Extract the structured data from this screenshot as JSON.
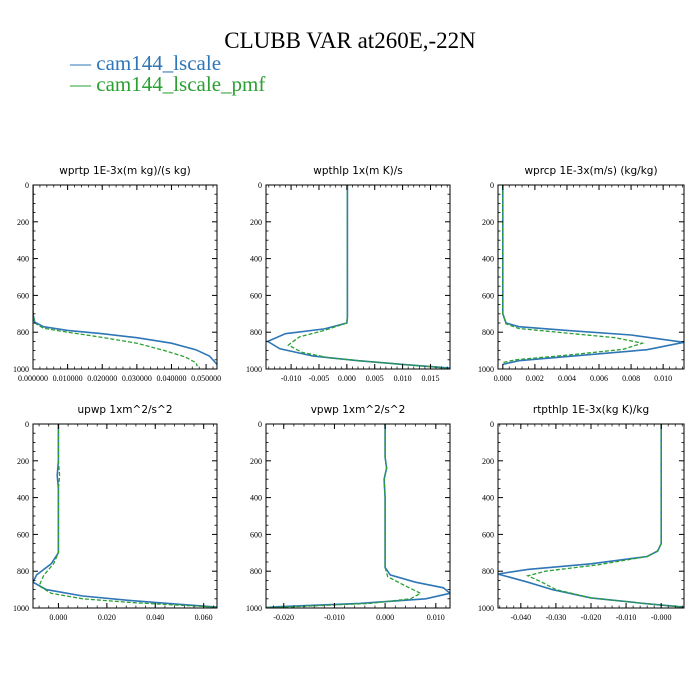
{
  "title": "CLUBB VAR at260E,-22N",
  "colors": {
    "series1": "#2e76b6",
    "series2": "#2aa032",
    "axes": "#000000"
  },
  "legend": [
    {
      "label": "cam144_lscale",
      "color": "#2e76b6"
    },
    {
      "label": "cam144_lscale_pmf",
      "color": "#2aa032"
    }
  ],
  "chart_data": [
    {
      "type": "line",
      "title": "wprtp  1E-3x(m kg)/(s kg)",
      "xlim": [
        0.0,
        0.05315
      ],
      "ylim": [
        0,
        1000
      ],
      "y_inverted": true,
      "xticks": [
        0.0,
        0.01,
        0.02,
        0.03,
        0.04,
        0.05
      ],
      "xticklabels": [
        "0.000000",
        "0.010000",
        "0.020000",
        "0.030000",
        "0.040000",
        "0.050000"
      ],
      "yticks": [
        0,
        200,
        400,
        600,
        800,
        1000
      ],
      "yticklabels": [
        "0",
        "200",
        "400",
        "600",
        "800",
        "1000"
      ],
      "series": [
        {
          "name": "cam144_lscale",
          "x": [
            0.0,
            0.0,
            0.0,
            0.0005,
            0.003,
            0.01,
            0.02,
            0.03,
            0.04,
            0.047,
            0.051,
            0.05315
          ],
          "y": [
            0,
            400,
            700,
            745,
            770,
            790,
            808,
            830,
            860,
            895,
            930,
            975
          ]
        },
        {
          "name": "cam144_lscale_pmf",
          "x": [
            0.0,
            0.0,
            0.0,
            0.0005,
            0.003,
            0.01,
            0.02,
            0.03,
            0.038,
            0.044,
            0.047,
            0.0475
          ],
          "y": [
            0,
            400,
            700,
            750,
            778,
            800,
            828,
            860,
            900,
            935,
            965,
            985
          ]
        }
      ]
    },
    {
      "type": "line",
      "title": "wpthlp  1x(m K)/s",
      "xlim": [
        -0.0145,
        0.0185
      ],
      "ylim": [
        0,
        1000
      ],
      "y_inverted": true,
      "xticks": [
        -0.01,
        -0.005,
        0.0,
        0.005,
        0.01,
        0.015
      ],
      "xticklabels": [
        "-0.010",
        "-0.005",
        "0.000",
        "0.005",
        "0.010",
        "0.015"
      ],
      "yticks": [
        0,
        200,
        400,
        600,
        800,
        1000
      ],
      "yticklabels": [
        "0",
        "200",
        "400",
        "600",
        "800",
        "1000"
      ],
      "series": [
        {
          "name": "cam144_lscale",
          "x": [
            0.0001,
            0.0001,
            0.0001,
            0.0001,
            0.0,
            -0.004,
            -0.011,
            -0.0142,
            -0.012,
            -0.006,
            0.002,
            0.01,
            0.0185
          ],
          "y": [
            0,
            300,
            600,
            720,
            750,
            782,
            808,
            850,
            890,
            930,
            955,
            975,
            995
          ]
        },
        {
          "name": "cam144_lscale_pmf",
          "x": [
            0.0001,
            0.0001,
            0.0001,
            0.0001,
            0.0,
            -0.004,
            -0.0085,
            -0.0105,
            -0.008,
            -0.003,
            0.004,
            0.012,
            0.0178
          ],
          "y": [
            0,
            300,
            600,
            720,
            750,
            790,
            825,
            870,
            910,
            940,
            960,
            980,
            995
          ]
        }
      ]
    },
    {
      "type": "line",
      "title": "wprcp  1E-3x(m/s) (kg/kg)",
      "xlim": [
        -0.0003,
        0.0113
      ],
      "ylim": [
        0,
        1000
      ],
      "y_inverted": true,
      "xticks": [
        0.0,
        0.002,
        0.004,
        0.006,
        0.008,
        0.01
      ],
      "xticklabels": [
        "0.000",
        "0.002",
        "0.004",
        "0.006",
        "0.008",
        "0.010"
      ],
      "yticks": [
        0,
        200,
        400,
        600,
        800,
        1000
      ],
      "yticklabels": [
        "0",
        "200",
        "400",
        "600",
        "800",
        "1000"
      ],
      "series": [
        {
          "name": "cam144_lscale",
          "x": [
            0.0,
            0.0,
            0.0,
            0.0002,
            0.001,
            0.004,
            0.008,
            0.0113,
            0.009,
            0.005,
            0.001,
            0.0
          ],
          "y": [
            0,
            500,
            700,
            750,
            770,
            790,
            815,
            855,
            895,
            925,
            955,
            975
          ]
        },
        {
          "name": "cam144_lscale_pmf",
          "x": [
            0.0,
            0.0,
            0.0,
            0.0002,
            0.001,
            0.004,
            0.007,
            0.0087,
            0.0075,
            0.004,
            0.0008,
            0.0
          ],
          "y": [
            0,
            500,
            700,
            755,
            780,
            805,
            830,
            860,
            893,
            925,
            950,
            965
          ]
        }
      ]
    },
    {
      "type": "line",
      "title": "upwp  1xm^2/s^2",
      "xlim": [
        -0.0105,
        0.0655
      ],
      "ylim": [
        0,
        1000
      ],
      "y_inverted": true,
      "xticks": [
        0.0,
        0.02,
        0.04,
        0.06
      ],
      "xticklabels": [
        "0.000",
        "0.020",
        "0.040",
        "0.060"
      ],
      "yticks": [
        0,
        200,
        400,
        600,
        800,
        1000
      ],
      "yticklabels": [
        "0",
        "200",
        "400",
        "600",
        "800",
        "1000"
      ],
      "series": [
        {
          "name": "cam144_lscale",
          "x": [
            0.0,
            0.0,
            -0.0005,
            0.0,
            0.0,
            -0.003,
            -0.009,
            -0.0105,
            -0.005,
            0.01,
            0.03,
            0.05,
            0.0655
          ],
          "y": [
            0,
            200,
            280,
            350,
            700,
            760,
            820,
            860,
            900,
            935,
            960,
            980,
            995
          ]
        },
        {
          "name": "cam144_lscale_pmf",
          "x": [
            0.0,
            0.0,
            0.0005,
            0.0,
            0.0,
            -0.002,
            -0.006,
            -0.008,
            -0.003,
            0.01,
            0.03,
            0.05,
            0.0655
          ],
          "y": [
            0,
            200,
            280,
            350,
            700,
            760,
            820,
            880,
            920,
            950,
            970,
            985,
            995
          ]
        }
      ]
    },
    {
      "type": "line",
      "title": "vpwp  1xm^2/s^2",
      "xlim": [
        -0.0235,
        0.0128
      ],
      "ylim": [
        0,
        1000
      ],
      "y_inverted": true,
      "xticks": [
        -0.02,
        -0.01,
        0.0,
        0.01
      ],
      "xticklabels": [
        "-0.020",
        "-0.010",
        "0.000",
        "0.010"
      ],
      "yticks": [
        0,
        200,
        400,
        600,
        800,
        1000
      ],
      "yticklabels": [
        "0",
        "200",
        "400",
        "600",
        "800",
        "1000"
      ],
      "series": [
        {
          "name": "cam144_lscale",
          "x": [
            0.0,
            0.0,
            0.0003,
            -0.0002,
            0.0,
            0.0,
            0.001,
            0.006,
            0.0115,
            0.0128,
            0.008,
            -0.005,
            -0.021,
            -0.0235
          ],
          "y": [
            0,
            180,
            240,
            300,
            400,
            780,
            820,
            860,
            890,
            920,
            950,
            975,
            993,
            998
          ]
        },
        {
          "name": "cam144_lscale_pmf",
          "x": [
            0.0,
            0.0,
            0.0003,
            -0.0002,
            0.0,
            0.0,
            0.0005,
            0.004,
            0.007,
            0.005,
            -0.003,
            -0.018,
            -0.0235
          ],
          "y": [
            0,
            180,
            240,
            300,
            400,
            780,
            830,
            880,
            920,
            950,
            975,
            993,
            998
          ]
        }
      ]
    },
    {
      "type": "line",
      "title": "rtpthlp  1E-3x(kg K)/kg",
      "xlim": [
        -0.0465,
        0.0065
      ],
      "ylim": [
        0,
        1000
      ],
      "y_inverted": true,
      "xticks": [
        -0.04,
        -0.03,
        -0.02,
        -0.01,
        0.0
      ],
      "xticklabels": [
        "-0.040",
        "-0.030",
        "-0.020",
        "-0.010",
        "-0.000"
      ],
      "yticks": [
        0,
        200,
        400,
        600,
        800,
        1000
      ],
      "yticklabels": [
        "0",
        "200",
        "400",
        "600",
        "800",
        "1000"
      ],
      "series": [
        {
          "name": "cam144_lscale",
          "x": [
            0.0,
            0.0,
            0.0,
            -0.001,
            -0.004,
            -0.02,
            -0.038,
            -0.0465,
            -0.038,
            -0.031,
            -0.02,
            -0.005,
            0.0065
          ],
          "y": [
            0,
            400,
            650,
            690,
            720,
            760,
            790,
            815,
            860,
            900,
            945,
            975,
            995
          ]
        },
        {
          "name": "cam144_lscale_pmf",
          "x": [
            0.0,
            0.0,
            0.0,
            -0.001,
            -0.004,
            -0.018,
            -0.033,
            -0.038,
            -0.034,
            -0.03,
            -0.02,
            -0.005,
            0.006
          ],
          "y": [
            0,
            400,
            650,
            690,
            720,
            765,
            800,
            825,
            860,
            900,
            945,
            975,
            995
          ]
        }
      ]
    }
  ]
}
